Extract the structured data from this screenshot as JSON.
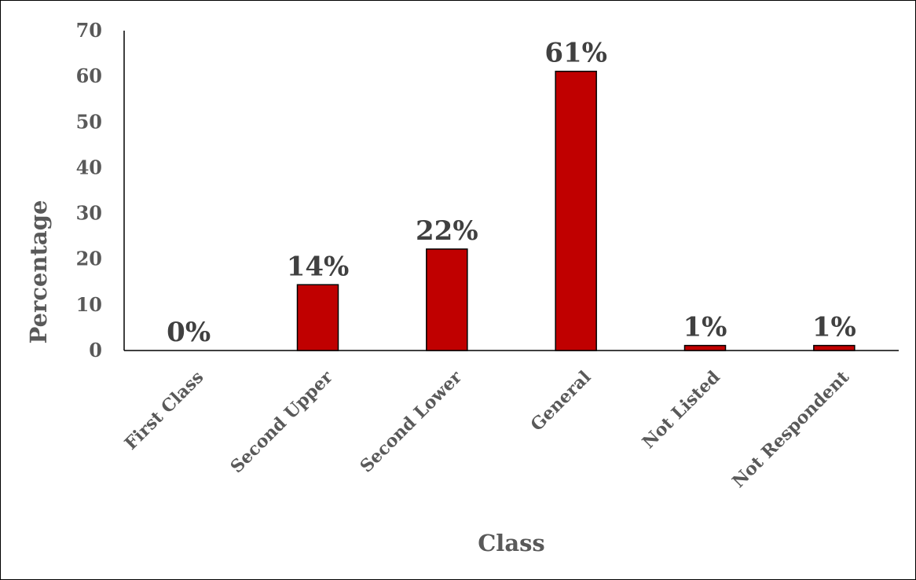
{
  "chart_data": {
    "type": "bar",
    "title": "",
    "xlabel": "Class",
    "ylabel": "Percentage",
    "categories": [
      "First Class",
      "Second Upper",
      "Second Lower",
      "General",
      "Not Listed",
      "Not Respondent"
    ],
    "values": [
      0,
      14.4,
      22.2,
      61.1,
      1.1,
      1.1
    ],
    "data_labels": [
      "0%",
      "14%",
      "22%",
      "61%",
      "1%",
      "1%"
    ],
    "ylim": [
      0,
      70
    ],
    "yticks": [
      "0",
      "10",
      "20",
      "30",
      "40",
      "50",
      "60",
      "70"
    ],
    "grid": false,
    "legend": "none",
    "bar_color": "#C00000",
    "bar_edge_color": "#000000"
  }
}
